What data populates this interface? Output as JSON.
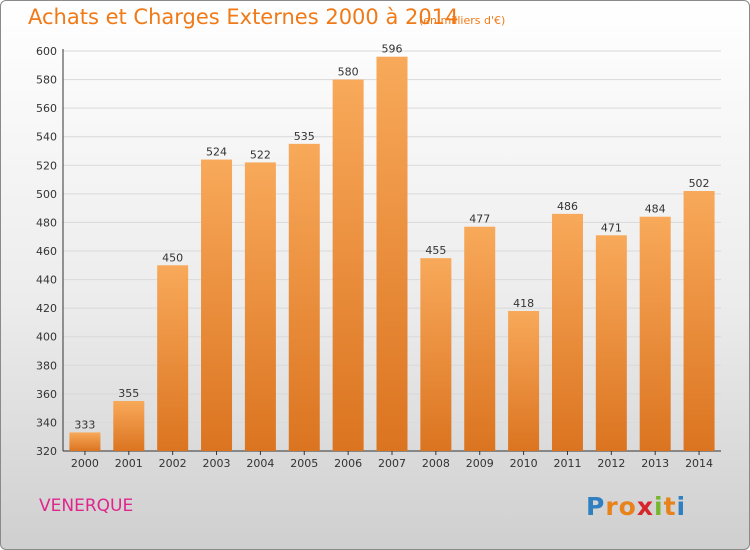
{
  "header": {
    "title": "Achats et Charges Externes 2000 à 2014",
    "subtitle": "(en milliers d'€)"
  },
  "footer": {
    "commune": "VENERQUE",
    "logo_letters": [
      "P",
      "r",
      "o",
      "x",
      "i",
      "t",
      "i"
    ],
    "logo_colors": [
      "#2f7fc1",
      "#e8821a",
      "#e8821a",
      "#d7262b",
      "#79b62f",
      "#e8821a",
      "#2f7fc1"
    ]
  },
  "colors": {
    "bar_light": "#f8a95a",
    "bar_dark": "#db7420",
    "grid": "#d9d9d9",
    "title": "#f07a18",
    "commune": "#e0258d"
  },
  "chart_data": {
    "type": "bar",
    "categories": [
      "2000",
      "2001",
      "2002",
      "2003",
      "2004",
      "2005",
      "2006",
      "2007",
      "2008",
      "2009",
      "2010",
      "2011",
      "2012",
      "2013",
      "2014"
    ],
    "values": [
      333,
      355,
      450,
      524,
      522,
      535,
      580,
      596,
      455,
      477,
      418,
      486,
      471,
      484,
      502
    ],
    "title": "Achats et Charges Externes 2000 à 2014",
    "xlabel": "",
    "ylabel": "",
    "ylim": [
      320,
      600
    ],
    "yticks": [
      320,
      340,
      360,
      380,
      400,
      420,
      440,
      460,
      480,
      500,
      520,
      540,
      560,
      580,
      600
    ],
    "grid": true,
    "data_labels": true
  }
}
